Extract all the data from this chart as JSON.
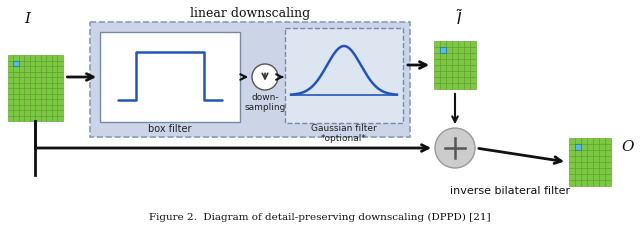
{
  "title": "linear downscaling",
  "label_I": "I",
  "label_O": "O",
  "label_box_filter": "box filter",
  "label_downsampling": "down-\nsampling",
  "label_gaussian": "Gaussian filter\n*optional*",
  "label_ibf": "inverse bilateral filter",
  "green": "#7bc843",
  "green_border": "#5a9a20",
  "blue_highlight": "#55bbee",
  "blue_line": "#2255bb",
  "arrow_color": "#111111",
  "outer_box_bg": "#ccd5e8",
  "outer_box_edge": "#8899bb",
  "bf_box_bg": "#ffffff",
  "bf_box_edge": "#7788aa",
  "gf_box_bg": "#dde5f0",
  "gf_box_edge": "#7788aa",
  "plus_fill": "#cccccc",
  "plus_edge": "#999999",
  "ds_fill": "#ffffff",
  "ds_edge": "#555555"
}
